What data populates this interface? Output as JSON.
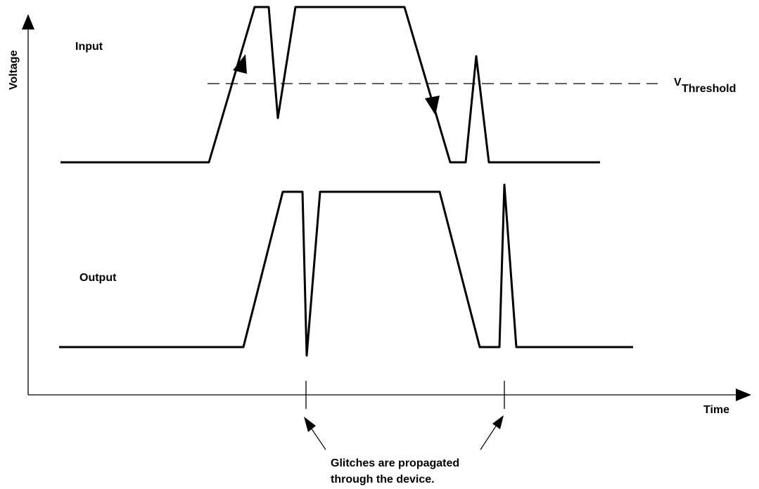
{
  "colors": {
    "stroke": "#000000",
    "background": "#ffffff"
  },
  "axes": {
    "y_label": "Voltage",
    "x_label": "Time"
  },
  "signals": {
    "input_label": "Input",
    "output_label": "Output"
  },
  "threshold": {
    "label_main": "V",
    "label_sub": "Threshold"
  },
  "annotation": {
    "line1": "Glitches are propagated",
    "line2": "through the device."
  }
}
